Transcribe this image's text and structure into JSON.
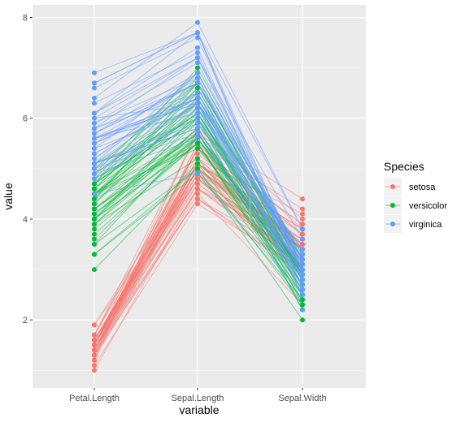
{
  "chart_data": {
    "type": "line",
    "title": "",
    "xlabel": "variable",
    "ylabel": "value",
    "categories": [
      "Petal.Length",
      "Sepal.Length",
      "Sepal.Width"
    ],
    "ylim": [
      0.65,
      8.25
    ],
    "yticks": [
      2,
      4,
      6,
      8
    ],
    "grid": true,
    "legend": {
      "title": "Species",
      "position": "right",
      "entries": [
        "setosa",
        "versicolor",
        "virginica"
      ]
    },
    "series": [
      {
        "name": "setosa",
        "color": "#F8766D",
        "petal_length": [
          1.4,
          1.4,
          1.3,
          1.5,
          1.4,
          1.7,
          1.4,
          1.5,
          1.4,
          1.5,
          1.5,
          1.6,
          1.4,
          1.1,
          1.2,
          1.5,
          1.3,
          1.4,
          1.7,
          1.5,
          1.7,
          1.5,
          1.0,
          1.7,
          1.9,
          1.6,
          1.6,
          1.5,
          1.4,
          1.6,
          1.6,
          1.5,
          1.5,
          1.4,
          1.5,
          1.2,
          1.3,
          1.4,
          1.3,
          1.5,
          1.3,
          1.3,
          1.3,
          1.6,
          1.9,
          1.4,
          1.6,
          1.4,
          1.5,
          1.4
        ],
        "sepal_length": [
          5.1,
          4.9,
          4.7,
          4.6,
          5.0,
          5.4,
          4.6,
          5.0,
          4.4,
          4.9,
          5.4,
          4.8,
          4.8,
          4.3,
          5.8,
          5.7,
          5.4,
          5.1,
          5.7,
          5.1,
          5.4,
          5.1,
          4.6,
          5.1,
          4.8,
          5.0,
          5.0,
          5.2,
          5.2,
          4.7,
          4.8,
          5.4,
          5.2,
          5.5,
          4.9,
          5.0,
          5.5,
          4.9,
          4.4,
          5.1,
          5.0,
          4.5,
          4.4,
          5.0,
          5.1,
          4.8,
          5.1,
          4.6,
          5.3,
          5.0
        ],
        "sepal_width": [
          3.5,
          3.0,
          3.2,
          3.1,
          3.6,
          3.9,
          3.4,
          3.4,
          2.9,
          3.1,
          3.7,
          3.4,
          3.0,
          3.0,
          4.0,
          4.4,
          3.9,
          3.5,
          3.8,
          3.8,
          3.4,
          3.7,
          3.6,
          3.3,
          3.4,
          3.0,
          3.4,
          3.5,
          3.4,
          3.2,
          3.1,
          3.4,
          4.1,
          4.2,
          3.1,
          3.2,
          3.5,
          3.6,
          3.0,
          3.4,
          3.5,
          2.3,
          3.2,
          3.5,
          3.8,
          3.0,
          3.8,
          3.2,
          3.7,
          3.3
        ]
      },
      {
        "name": "versicolor",
        "color": "#00BA38",
        "petal_length": [
          4.7,
          4.5,
          4.9,
          4.0,
          4.6,
          4.5,
          4.7,
          3.3,
          4.6,
          3.9,
          3.5,
          4.2,
          4.0,
          4.7,
          3.6,
          4.4,
          4.5,
          4.1,
          4.5,
          3.9,
          4.8,
          4.0,
          4.9,
          4.7,
          4.3,
          4.4,
          4.8,
          5.0,
          4.5,
          3.5,
          3.8,
          3.7,
          3.9,
          5.1,
          4.5,
          4.5,
          4.7,
          4.4,
          4.1,
          4.0,
          4.4,
          4.6,
          4.0,
          3.3,
          4.2,
          4.2,
          4.2,
          4.3,
          3.0,
          4.1
        ],
        "sepal_length": [
          7.0,
          6.4,
          6.9,
          5.5,
          6.5,
          5.7,
          6.3,
          4.9,
          6.6,
          5.2,
          5.0,
          5.9,
          6.0,
          6.1,
          5.6,
          6.7,
          5.6,
          5.8,
          6.2,
          5.6,
          5.9,
          6.1,
          6.3,
          6.1,
          6.4,
          6.6,
          6.8,
          6.7,
          6.0,
          5.7,
          5.5,
          5.5,
          5.8,
          6.0,
          5.4,
          6.0,
          6.7,
          6.3,
          5.6,
          5.5,
          5.5,
          6.1,
          5.8,
          5.0,
          5.6,
          5.7,
          5.7,
          6.2,
          5.1,
          5.7
        ],
        "sepal_width": [
          3.2,
          3.2,
          3.1,
          2.3,
          2.8,
          2.8,
          3.3,
          2.4,
          2.9,
          2.7,
          2.0,
          3.0,
          2.2,
          2.9,
          2.9,
          3.1,
          3.0,
          2.7,
          2.2,
          2.5,
          3.2,
          2.8,
          2.5,
          2.8,
          2.9,
          3.0,
          2.8,
          3.0,
          2.9,
          2.6,
          2.4,
          2.4,
          2.7,
          2.7,
          3.0,
          3.4,
          3.1,
          2.3,
          3.0,
          2.5,
          2.6,
          3.0,
          2.6,
          2.3,
          2.7,
          3.0,
          2.9,
          2.9,
          2.5,
          2.8
        ]
      },
      {
        "name": "virginica",
        "color": "#619CFF",
        "petal_length": [
          6.0,
          5.1,
          5.9,
          5.6,
          5.8,
          6.6,
          4.5,
          6.3,
          5.8,
          6.1,
          5.1,
          5.3,
          5.5,
          5.0,
          5.1,
          5.3,
          5.5,
          6.7,
          6.9,
          5.0,
          5.7,
          4.9,
          6.7,
          4.9,
          5.7,
          6.0,
          4.8,
          4.9,
          5.6,
          5.8,
          6.1,
          6.4,
          5.6,
          5.1,
          5.6,
          6.1,
          5.6,
          5.5,
          4.8,
          5.4,
          5.6,
          5.1,
          5.1,
          5.9,
          5.7,
          5.2,
          5.0,
          5.2,
          5.4,
          5.1
        ],
        "sepal_length": [
          6.3,
          5.8,
          7.1,
          6.3,
          6.5,
          7.6,
          4.9,
          7.3,
          6.7,
          7.2,
          6.5,
          6.4,
          6.8,
          5.7,
          5.8,
          6.4,
          6.5,
          7.7,
          7.7,
          6.0,
          6.9,
          5.6,
          7.7,
          6.3,
          6.7,
          7.2,
          6.2,
          6.1,
          6.4,
          7.2,
          7.4,
          7.9,
          6.4,
          6.3,
          6.1,
          7.7,
          6.3,
          6.4,
          6.0,
          6.9,
          6.7,
          6.9,
          5.8,
          6.8,
          6.7,
          6.7,
          6.3,
          6.5,
          6.2,
          5.9
        ],
        "sepal_width": [
          3.3,
          2.7,
          3.0,
          2.9,
          3.0,
          3.0,
          2.5,
          2.9,
          2.5,
          3.6,
          3.2,
          2.7,
          3.0,
          2.5,
          2.8,
          3.2,
          3.0,
          3.8,
          2.6,
          2.2,
          3.2,
          2.8,
          2.8,
          2.7,
          3.3,
          3.2,
          2.8,
          3.0,
          2.8,
          3.0,
          2.8,
          3.8,
          2.8,
          2.8,
          2.6,
          3.0,
          3.4,
          3.1,
          3.0,
          3.1,
          3.1,
          3.1,
          2.7,
          3.2,
          3.3,
          3.0,
          2.5,
          3.0,
          3.4,
          3.0
        ]
      }
    ]
  }
}
